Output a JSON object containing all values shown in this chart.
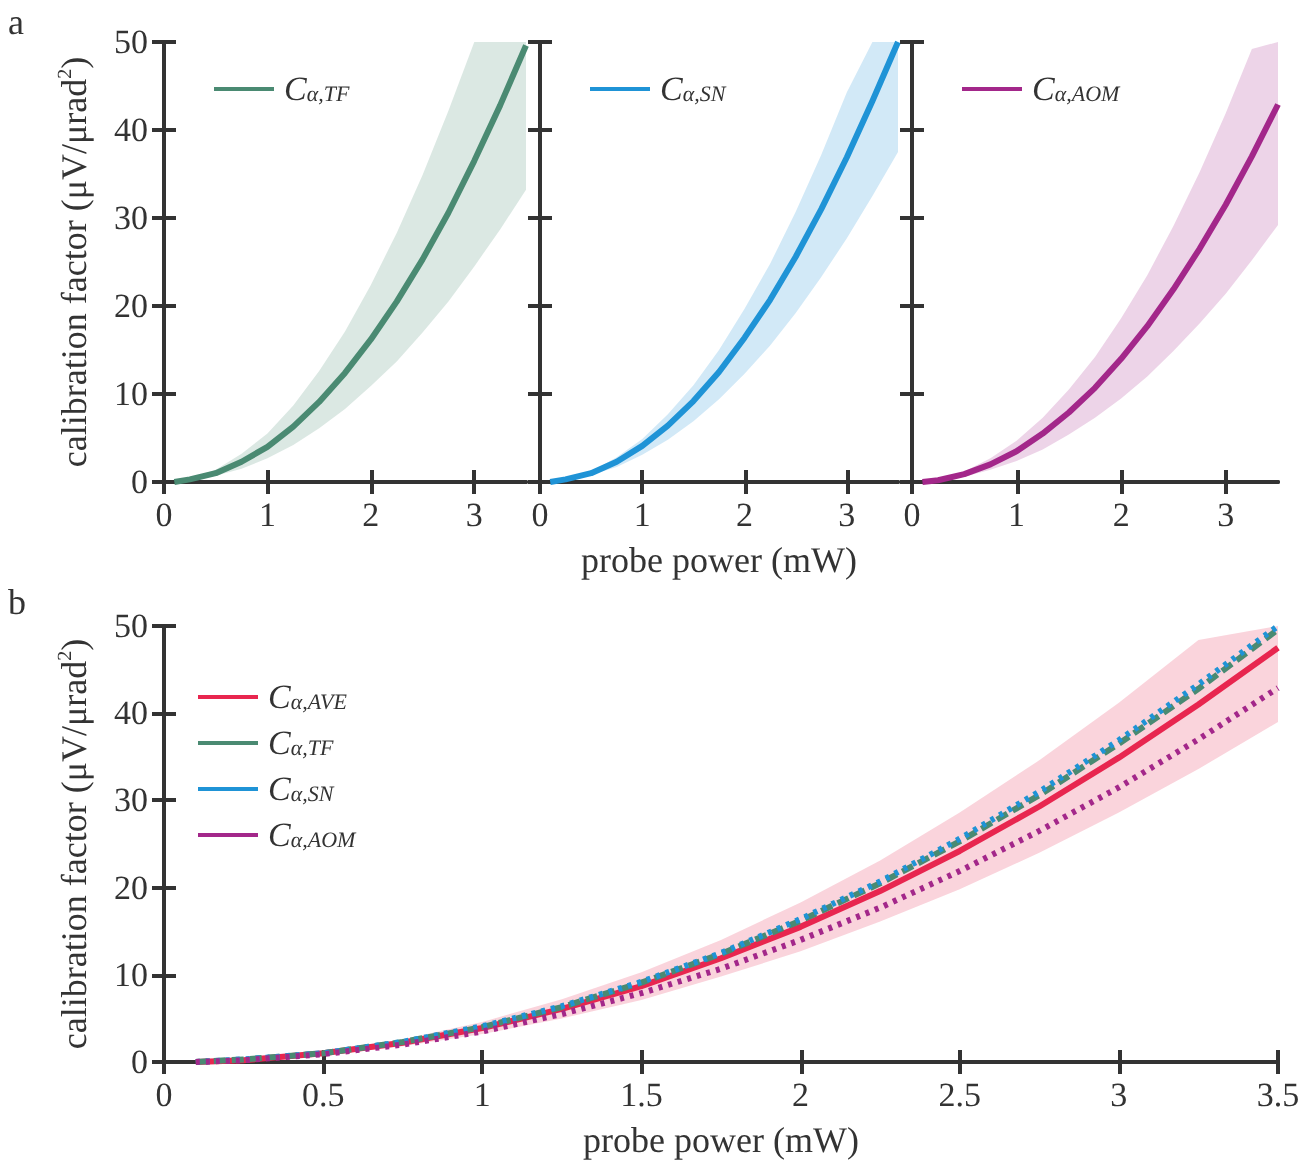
{
  "chart_data": [
    {
      "type": "line",
      "annotations": [
        "a"
      ],
      "ylabel": "calibration factor (μV/μrad$^{2}$)",
      "x": [
        0.1,
        0.25,
        0.5,
        0.75,
        1,
        1.25,
        1.5,
        1.75,
        2,
        2.25,
        2.5,
        2.75,
        3,
        3.25,
        3.5
      ],
      "xlim": [
        0,
        3.5
      ],
      "xticks": [
        0,
        1,
        2,
        3
      ],
      "ylim": [
        0,
        50
      ],
      "yticks": [
        0,
        10,
        20,
        30,
        40,
        50
      ],
      "grid": false,
      "legend": "top left",
      "marker": "none",
      "series": [
        {
          "name": "C$_{α,TF}$",
          "color": "#4a8a72",
          "line_style": "solid",
          "values": [
            0,
            0.3,
            1.0,
            2.3,
            4.0,
            6.3,
            9.1,
            12.4,
            16.2,
            20.5,
            25.3,
            30.6,
            36.5,
            42.8,
            49.6
          ],
          "lower": [
            0,
            0.2,
            0.7,
            1.5,
            2.7,
            4.2,
            6.1,
            8.3,
            10.9,
            13.7,
            17.0,
            20.5,
            24.5,
            28.7,
            33.2
          ],
          "upper": [
            0,
            0.4,
            1.4,
            3.2,
            5.5,
            8.7,
            12.6,
            17.1,
            22.4,
            28.3,
            34.9,
            42.2,
            50,
            50,
            50
          ]
        }
      ]
    },
    {
      "type": "line",
      "xlabel": "probe power (mW)",
      "x": [
        0.1,
        0.25,
        0.5,
        0.75,
        1,
        1.25,
        1.5,
        1.75,
        2,
        2.25,
        2.5,
        2.75,
        3,
        3.25,
        3.5
      ],
      "xlim": [
        0,
        3.5
      ],
      "xticks": [
        0,
        1,
        2,
        3
      ],
      "ylim": [
        0,
        50
      ],
      "yticks": [
        0,
        10,
        20,
        30,
        40,
        50
      ],
      "tick_labels": "x",
      "grid": false,
      "legend": "top left",
      "marker": "none",
      "series": [
        {
          "name": "C$_{α,SN}$",
          "color": "#1f93d6",
          "line_style": "solid",
          "values": [
            0,
            0.3,
            1.0,
            2.3,
            4.1,
            6.4,
            9.2,
            12.5,
            16.4,
            20.7,
            25.6,
            31.0,
            36.9,
            43.3,
            50.0
          ],
          "lower": [
            0,
            0.2,
            0.8,
            1.7,
            3.1,
            4.8,
            6.9,
            9.4,
            12.3,
            15.5,
            19.2,
            23.3,
            27.7,
            32.5,
            37.5
          ],
          "upper": [
            0,
            0.3,
            1.2,
            2.8,
            4.9,
            7.7,
            11.0,
            15.0,
            19.7,
            24.8,
            30.7,
            37.2,
            44.3,
            50,
            50
          ]
        }
      ]
    },
    {
      "type": "line",
      "x": [
        0.1,
        0.25,
        0.5,
        0.75,
        1,
        1.25,
        1.5,
        1.75,
        2,
        2.25,
        2.5,
        2.75,
        3,
        3.25,
        3.5
      ],
      "xlim": [
        0,
        3.5
      ],
      "xticks": [
        0,
        1,
        2,
        3
      ],
      "ylim": [
        0,
        50
      ],
      "yticks": [
        0,
        10,
        20,
        30,
        40,
        50
      ],
      "tick_labels": "x",
      "grid": false,
      "legend": "top left",
      "marker": "none",
      "series": [
        {
          "name": "C$_{α,AOM}$",
          "color": "#a3278a",
          "line_style": "solid",
          "values": [
            0,
            0.2,
            0.9,
            2.0,
            3.5,
            5.5,
            7.9,
            10.7,
            14.0,
            17.7,
            21.9,
            26.5,
            31.5,
            37.0,
            42.9
          ],
          "lower": [
            0,
            0.2,
            0.6,
            1.4,
            2.4,
            3.7,
            5.4,
            7.3,
            9.5,
            12.0,
            14.9,
            18.0,
            21.4,
            25.2,
            29.2
          ],
          "upper": [
            0,
            0.3,
            1.2,
            2.7,
            4.7,
            7.3,
            10.5,
            14.2,
            18.6,
            23.5,
            29.1,
            35.2,
            41.9,
            49.2,
            50
          ]
        }
      ]
    },
    {
      "type": "line",
      "annotations": [
        "b"
      ],
      "xlabel": "probe power (mW)",
      "ylabel": "calibration factor (μV/μrad$^{2}$)",
      "x": [
        0.1,
        0.25,
        0.5,
        0.75,
        1,
        1.25,
        1.5,
        1.75,
        2,
        2.25,
        2.5,
        2.75,
        3,
        3.25,
        3.5
      ],
      "xlim": [
        0,
        3.5
      ],
      "xticks": [
        0,
        0.5,
        1,
        1.5,
        2,
        2.5,
        3,
        3.5
      ],
      "ylim": [
        0,
        50
      ],
      "yticks": [
        0,
        10,
        20,
        30,
        40,
        50
      ],
      "grid": false,
      "legend": "top left",
      "marker": "none",
      "series": [
        {
          "name": "C$_{α,AVE}$",
          "color": "#e8264f",
          "line_style": "solid",
          "values": [
            0,
            0.2,
            1.0,
            2.2,
            3.9,
            6.1,
            8.7,
            11.9,
            15.5,
            19.6,
            24.2,
            29.3,
            34.9,
            41.0,
            47.5
          ],
          "lower": [
            0,
            0.2,
            0.8,
            1.8,
            3.2,
            5.0,
            7.1,
            9.8,
            12.7,
            16.1,
            19.8,
            24.0,
            28.6,
            33.6,
            39.0
          ],
          "upper": [
            0,
            0.3,
            1.1,
            2.6,
            4.6,
            7.2,
            10.3,
            14.0,
            18.3,
            23.1,
            28.6,
            34.6,
            41.2,
            48.4,
            50
          ]
        },
        {
          "name": "C$_{α,TF}$",
          "color": "#4a8a72",
          "line_style": "dashed",
          "values": [
            0,
            0.3,
            1.0,
            2.3,
            4.0,
            6.3,
            9.1,
            12.4,
            16.2,
            20.5,
            25.3,
            30.6,
            36.5,
            42.8,
            49.6
          ]
        },
        {
          "name": "C$_{α,SN}$",
          "color": "#1f93d6",
          "line_style": "dotted",
          "values": [
            0,
            0.3,
            1.0,
            2.3,
            4.1,
            6.4,
            9.2,
            12.5,
            16.4,
            20.7,
            25.6,
            31.0,
            36.9,
            43.3,
            50.0
          ]
        },
        {
          "name": "C$_{α,AOM}$",
          "color": "#a3278a",
          "line_style": "dotted",
          "values": [
            0,
            0.2,
            0.9,
            2.0,
            3.5,
            5.5,
            7.9,
            10.7,
            14.0,
            17.7,
            21.9,
            26.5,
            31.5,
            37.0,
            42.9
          ]
        }
      ]
    }
  ]
}
